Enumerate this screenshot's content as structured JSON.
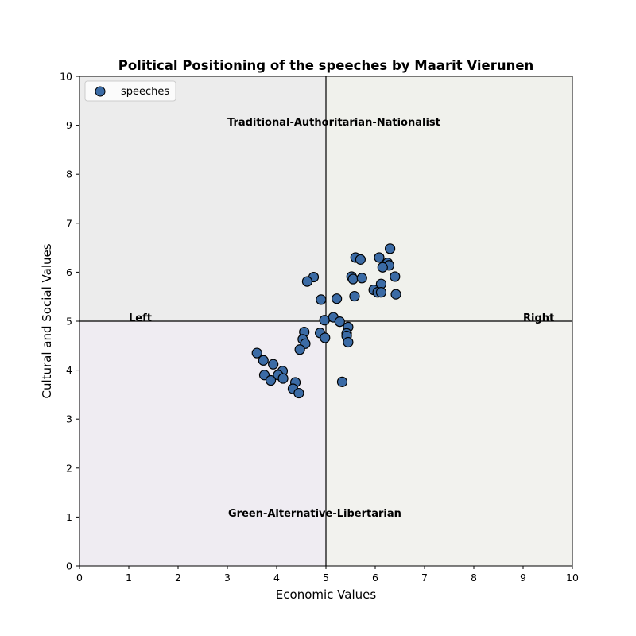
{
  "chart_data": {
    "type": "scatter",
    "title": "Political Positioning of the speeches by Maarit Vierunen",
    "xlabel": "Economic Values",
    "ylabel": "Cultural and Social Values",
    "xlim": [
      0,
      10
    ],
    "ylim": [
      0,
      10
    ],
    "xticks": [
      "0",
      "1",
      "2",
      "3",
      "4",
      "5",
      "6",
      "7",
      "8",
      "9",
      "10"
    ],
    "yticks": [
      "0",
      "1",
      "2",
      "3",
      "4",
      "5",
      "6",
      "7",
      "8",
      "9",
      "10"
    ],
    "grid": false,
    "legend_position": "top-left",
    "quadrant_colors": {
      "top_left": "#ececec",
      "top_right": "#f0f1ec",
      "bottom_left": "#efecf2",
      "bottom_right": "#f2f2ee"
    },
    "annotations": {
      "top": "Traditional-Authoritarian-Nationalist",
      "bottom": "Green-Alternative-Libertarian",
      "left": "Left",
      "right": "Right"
    },
    "series": [
      {
        "name": "speeches",
        "color": "#3b6ba5",
        "edge_color": "#000000",
        "points": [
          [
            6.3,
            6.48
          ],
          [
            5.6,
            6.3
          ],
          [
            5.7,
            6.26
          ],
          [
            6.08,
            6.3
          ],
          [
            6.25,
            6.19
          ],
          [
            6.28,
            6.14
          ],
          [
            6.15,
            6.1
          ],
          [
            4.75,
            5.9
          ],
          [
            4.62,
            5.81
          ],
          [
            5.52,
            5.91
          ],
          [
            5.55,
            5.86
          ],
          [
            5.73,
            5.88
          ],
          [
            6.4,
            5.91
          ],
          [
            6.12,
            5.76
          ],
          [
            5.97,
            5.64
          ],
          [
            6.05,
            5.59
          ],
          [
            6.12,
            5.59
          ],
          [
            6.42,
            5.55
          ],
          [
            5.58,
            5.51
          ],
          [
            5.22,
            5.46
          ],
          [
            4.9,
            5.44
          ],
          [
            5.15,
            5.08
          ],
          [
            4.97,
            5.02
          ],
          [
            5.28,
            4.99
          ],
          [
            5.45,
            4.88
          ],
          [
            5.42,
            4.75
          ],
          [
            5.42,
            4.7
          ],
          [
            4.88,
            4.76
          ],
          [
            4.56,
            4.78
          ],
          [
            4.53,
            4.63
          ],
          [
            4.98,
            4.66
          ],
          [
            4.58,
            4.54
          ],
          [
            5.45,
            4.57
          ],
          [
            4.47,
            4.42
          ],
          [
            3.6,
            4.35
          ],
          [
            3.73,
            4.2
          ],
          [
            3.93,
            4.12
          ],
          [
            4.12,
            3.98
          ],
          [
            4.03,
            3.9
          ],
          [
            3.75,
            3.9
          ],
          [
            3.88,
            3.79
          ],
          [
            4.13,
            3.83
          ],
          [
            4.38,
            3.75
          ],
          [
            5.33,
            3.76
          ],
          [
            4.33,
            3.62
          ],
          [
            4.45,
            3.53
          ]
        ]
      }
    ]
  }
}
